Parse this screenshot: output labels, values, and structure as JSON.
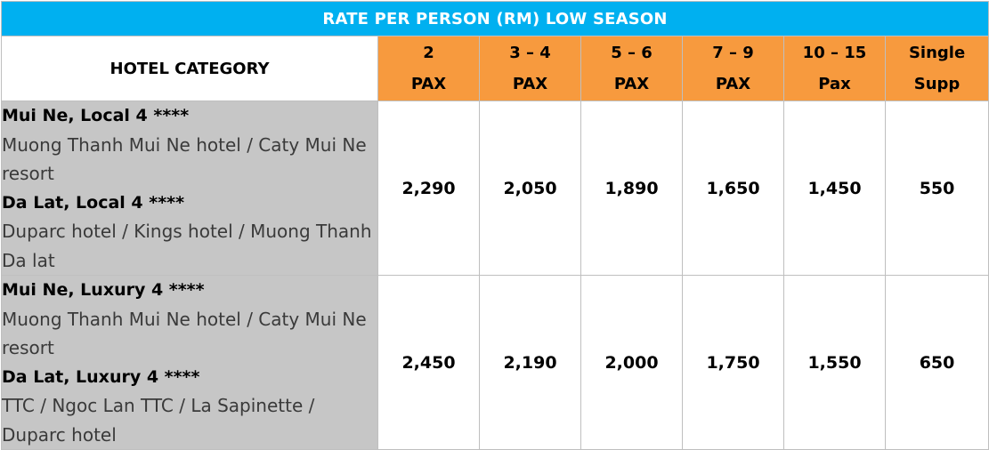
{
  "title": "RATE PER PERSON (RM) LOW SEASON",
  "category_header": "HOTEL CATEGORY",
  "pax_headers": [
    {
      "line1": "2",
      "line2": "PAX"
    },
    {
      "line1": "3 – 4",
      "line2": "PAX"
    },
    {
      "line1": "5 – 6",
      "line2": "PAX"
    },
    {
      "line1": "7 – 9",
      "line2": "PAX"
    },
    {
      "line1": "10 – 15",
      "line2": "Pax"
    },
    {
      "line1": "Single",
      "line2": "Supp"
    }
  ],
  "rows": [
    {
      "locations": [
        {
          "name": "Mui Ne, Local 4 ****",
          "hotels": "Muong Thanh Mui Ne hotel / Caty Mui Ne resort"
        },
        {
          "name": "Da Lat, Local 4 ****",
          "hotels": "Duparc hotel / Kings hotel / Muong Thanh Da lat"
        }
      ],
      "prices": [
        "2,290",
        "2,050",
        "1,890",
        "1,650",
        "1,450",
        "550"
      ]
    },
    {
      "locations": [
        {
          "name": "Mui Ne, Luxury 4 ****",
          "hotels": "Muong Thanh Mui Ne hotel / Caty Mui Ne resort"
        },
        {
          "name": "Da Lat, Luxury 4 ****",
          "hotels": "TTC / Ngoc Lan TTC / La Sapinette / Duparc hotel"
        }
      ],
      "prices": [
        "2,450",
        "2,190",
        "2,000",
        "1,750",
        "1,550",
        "650"
      ]
    }
  ]
}
